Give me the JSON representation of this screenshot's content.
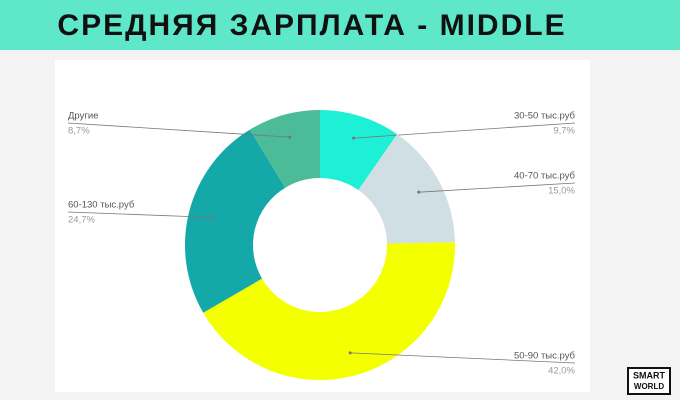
{
  "chart_data": {
    "type": "donut",
    "title": "СРЕДНЯЯ ЗАРПЛАТА - MIDDLE",
    "categories": [
      "30-50 тыс.руб",
      "40-70 тыс.руб",
      "50-90 тыс.руб",
      "60-130 тыс.руб",
      "Другие"
    ],
    "values": [
      9.7,
      15.0,
      42.0,
      24.7,
      8.7
    ],
    "value_labels": [
      "9,7%",
      "15,0%",
      "42,0%",
      "24,7%",
      "8,7%"
    ],
    "colors": [
      "#1ef0d6",
      "#cfdfe3",
      "#f4ff00",
      "#14a8a8",
      "#4cbb97"
    ]
  },
  "logo": [
    "SMART",
    "WORLD"
  ]
}
